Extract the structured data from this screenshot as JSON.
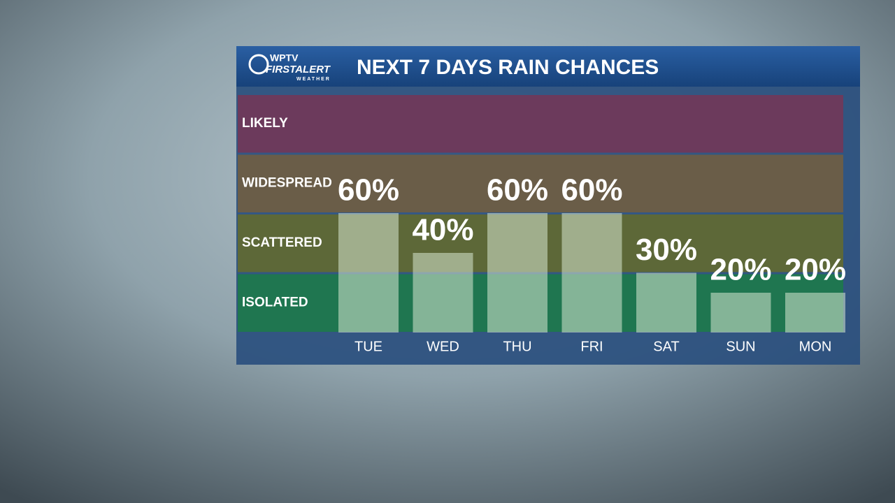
{
  "logo": {
    "station": "WPTV",
    "brand": "FIRSTALERT",
    "sub": "WEATHER"
  },
  "chart_data": {
    "type": "bar",
    "title": "NEXT 7 DAYS RAIN CHANCES",
    "categories": [
      "TUE",
      "WED",
      "THU",
      "FRI",
      "SAT",
      "SUN",
      "MON"
    ],
    "values": [
      60,
      40,
      60,
      60,
      30,
      20,
      20
    ],
    "value_labels": [
      "60%",
      "40%",
      "60%",
      "60%",
      "30%",
      "20%",
      "20%"
    ],
    "color": "rgba(215,232,210,0.55)",
    "ylim": [
      0,
      120
    ],
    "bands": [
      {
        "label": "ISOLATED",
        "color": "#1f7650"
      },
      {
        "label": "SCATTERED",
        "color": "#5d6838"
      },
      {
        "label": "WIDESPREAD",
        "color": "#6a5d48"
      },
      {
        "label": "LIKELY",
        "color": "#6c3a5c"
      }
    ]
  }
}
